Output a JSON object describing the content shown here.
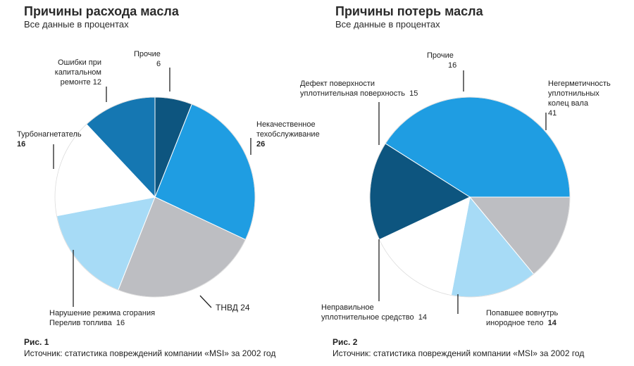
{
  "chart_data": [
    {
      "type": "pie",
      "title": "Причины расхода масла",
      "subtitle": "Все данные в процентах",
      "caption": "Рис. 1",
      "source": "Источник: статистика повреждений компании «MSI» за 2002 год",
      "slices": [
        {
          "label": "Некачественное техобслуживание",
          "value": 26,
          "color": "#1f9de2"
        },
        {
          "label": "ТНВД",
          "value": 24,
          "color": "#bdbec2"
        },
        {
          "label": "Нарушение режима сгорания Перелив топлива",
          "value": 16,
          "color": "#a7dbf6"
        },
        {
          "label": "Турбонагнетатель",
          "value": 16,
          "color": "#ffffff"
        },
        {
          "label": "Ошибки при капитальном ремонте",
          "value": 12,
          "color": "#1577b2"
        },
        {
          "label": "Прочие",
          "value": 6,
          "color": "#0d557f"
        }
      ]
    },
    {
      "type": "pie",
      "title": "Причины потерь масла",
      "subtitle": "Все данные в процентах",
      "caption": "Рис. 2",
      "source": "Источник: статистика повреждений компании «MSI» за 2002 год",
      "slices": [
        {
          "label": "Негерметичность уплотнительных колец вала",
          "value": 41,
          "color": "#1f9de2"
        },
        {
          "label": "Попавшее вовнутрь инородное тело",
          "value": 14,
          "color": "#bdbec2"
        },
        {
          "label": "Неправильное уплотнительное средство",
          "value": 14,
          "color": "#a7dbf6"
        },
        {
          "label": "Дефект поверхности уплотнительная поверхность",
          "value": 15,
          "color": "#ffffff"
        },
        {
          "label": "Прочие",
          "value": 16,
          "color": "#0d557f"
        }
      ]
    }
  ],
  "labels1": {
    "others": {
      "name": "Прочие",
      "value": "6"
    },
    "repair": {
      "name1": "Ошибки при",
      "name2": "капитальном",
      "name3": "ремонте",
      "value": "12"
    },
    "service": {
      "name1": "Некачественное",
      "name2": "техобслуживание",
      "value": "26"
    },
    "turbo": {
      "name": "Турбонагнетатель",
      "value": "16"
    },
    "combustion": {
      "name1": "Нарушение режима сгорания",
      "name2": "Перелив топлива",
      "value": "16"
    },
    "tnvd": {
      "name": "ТНВД",
      "value": "24"
    }
  },
  "labels2": {
    "others": {
      "name": "Прочие",
      "value": "16"
    },
    "defect": {
      "name1": "Дефект поверхности",
      "name2": "уплотнительная поверхность",
      "value": "15"
    },
    "seals": {
      "name1": "Негерметичность",
      "name2": "уплотнильных",
      "name3": "колец вала",
      "value": "41"
    },
    "sealant": {
      "name1": "Неправильное",
      "name2": "уплотнительное средство",
      "value": "14"
    },
    "foreign": {
      "name1": "Попавшее вовнутрь",
      "name2": "инородное тело",
      "value": "14"
    }
  }
}
